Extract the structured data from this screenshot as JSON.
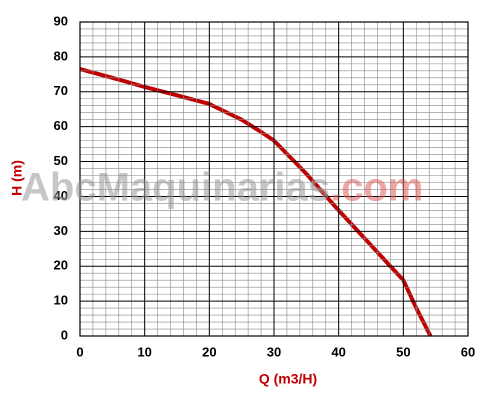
{
  "chart_data": {
    "type": "line",
    "x_label": "Q (m3/H)",
    "y_label": "H (m)",
    "watermark": [
      "AbcMaquinarias",
      ".com"
    ],
    "x": [
      0,
      5,
      10,
      15,
      20,
      25,
      28,
      30,
      35,
      40,
      45,
      48,
      50,
      52,
      54.2
    ],
    "series": [
      {
        "name": "H",
        "color": "#c00000",
        "values": [
          76.5,
          74,
          71.4,
          69,
          66.5,
          62,
          58.5,
          56,
          46.5,
          36,
          26,
          20,
          16,
          8,
          0
        ]
      }
    ],
    "xlim": [
      0,
      60
    ],
    "xticks": [
      0,
      10,
      20,
      30,
      40,
      50,
      60
    ],
    "ylim": [
      0,
      90
    ],
    "yticks": [
      0,
      10,
      20,
      30,
      40,
      50,
      60,
      70,
      80,
      90
    ],
    "grid": true,
    "minor_grid": true
  }
}
